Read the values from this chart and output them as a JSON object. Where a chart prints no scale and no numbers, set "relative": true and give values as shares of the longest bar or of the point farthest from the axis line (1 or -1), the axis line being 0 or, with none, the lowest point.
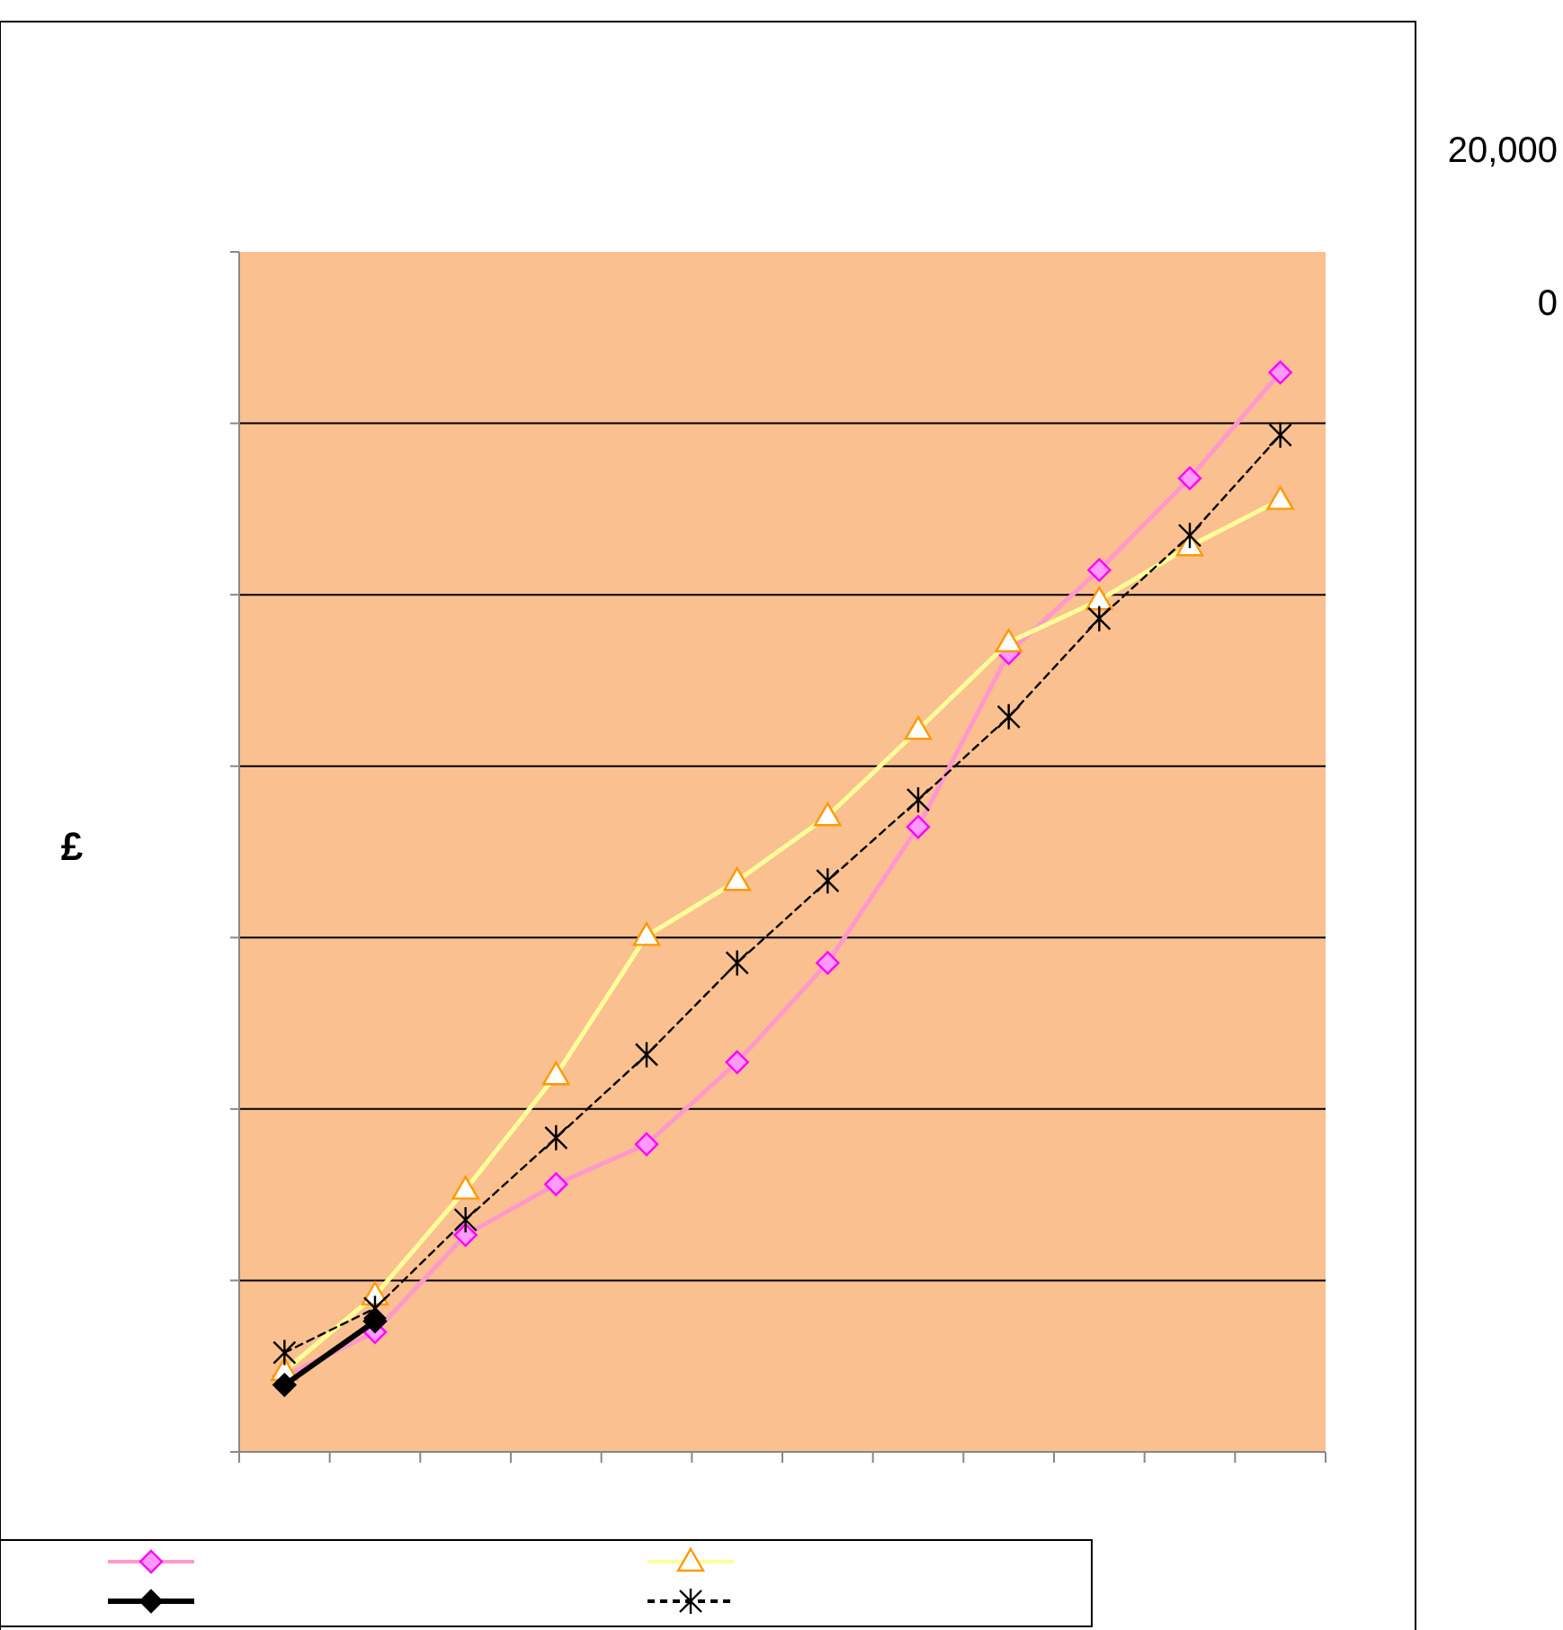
{
  "chart_data": {
    "type": "line",
    "relative": true,
    "ylabel": "£",
    "grid": "y",
    "categories": [
      null,
      null,
      null,
      null,
      null,
      null,
      null,
      null,
      null,
      null,
      null,
      null
    ],
    "series": [
      {
        "color": "#ff99cc",
        "marker": "diamond",
        "line_style": "solid",
        "values": [
          0.07,
          0.111,
          0.201,
          0.248,
          0.285,
          0.361,
          0.453,
          0.579,
          0.74,
          0.817,
          0.902,
          1
        ]
      },
      {
        "color": "#ffff99",
        "marker": "triangle",
        "line_style": "solid",
        "values": [
          0.075,
          0.145,
          0.243,
          0.349,
          0.478,
          0.529,
          0.589,
          0.669,
          0.75,
          0.789,
          0.839,
          0.882
        ]
      },
      {
        "color": "#000000",
        "marker": "diamond",
        "line_style": "solid",
        "values": [
          0.062,
          0.121,
          null,
          null,
          null,
          null,
          null,
          null,
          null,
          null,
          null,
          null
        ]
      },
      {
        "color": "#000000",
        "marker": "cross",
        "line_style": "dashed",
        "values": [
          0.092,
          0.133,
          0.215,
          0.291,
          0.368,
          0.453,
          0.529,
          0.604,
          0.681,
          0.772,
          0.849,
          0.942
        ]
      }
    ],
    "annotations": [
      "20,000",
      "0"
    ]
  }
}
